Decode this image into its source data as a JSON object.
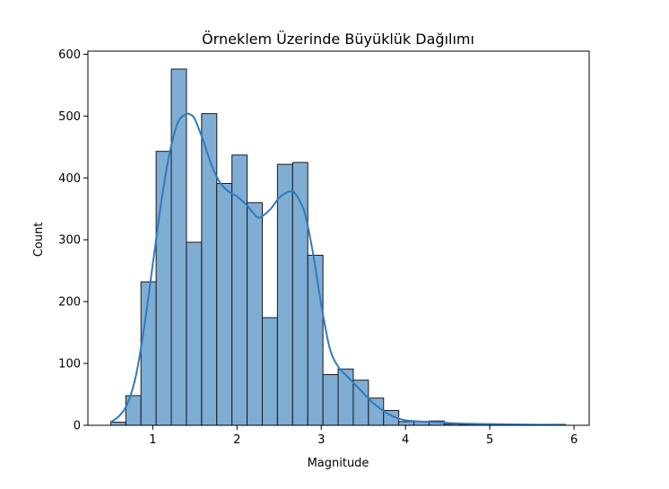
{
  "chart_data": {
    "type": "bar",
    "title": "Örneklem Üzerinde Büyüklük Dağılımı",
    "xlabel": "Magnitude",
    "ylabel": "Count",
    "xlim": [
      0.23,
      6.18
    ],
    "ylim": [
      0,
      605
    ],
    "xticks": [
      1,
      2,
      3,
      4,
      5,
      6
    ],
    "yticks": [
      0,
      100,
      200,
      300,
      400,
      500,
      600
    ],
    "grid": false,
    "bar_color": "#7fadd4",
    "bar_edge_color": "#1a1a1a",
    "kde_color": "#2f7bbd",
    "bins": [
      {
        "x0": 0.5,
        "x1": 0.68,
        "count": 5
      },
      {
        "x0": 0.68,
        "x1": 0.86,
        "count": 48
      },
      {
        "x0": 0.86,
        "x1": 1.04,
        "count": 232
      },
      {
        "x0": 1.04,
        "x1": 1.22,
        "count": 443
      },
      {
        "x0": 1.22,
        "x1": 1.4,
        "count": 576
      },
      {
        "x0": 1.4,
        "x1": 1.58,
        "count": 296
      },
      {
        "x0": 1.58,
        "x1": 1.76,
        "count": 504
      },
      {
        "x0": 1.76,
        "x1": 1.94,
        "count": 391
      },
      {
        "x0": 1.94,
        "x1": 2.12,
        "count": 437
      },
      {
        "x0": 2.12,
        "x1": 2.3,
        "count": 360
      },
      {
        "x0": 2.3,
        "x1": 2.48,
        "count": 174
      },
      {
        "x0": 2.48,
        "x1": 2.66,
        "count": 422
      },
      {
        "x0": 2.66,
        "x1": 2.84,
        "count": 425
      },
      {
        "x0": 2.84,
        "x1": 3.02,
        "count": 275
      },
      {
        "x0": 3.02,
        "x1": 3.2,
        "count": 82
      },
      {
        "x0": 3.2,
        "x1": 3.38,
        "count": 91
      },
      {
        "x0": 3.38,
        "x1": 3.56,
        "count": 73
      },
      {
        "x0": 3.56,
        "x1": 3.74,
        "count": 44
      },
      {
        "x0": 3.74,
        "x1": 3.92,
        "count": 24
      },
      {
        "x0": 3.92,
        "x1": 4.1,
        "count": 6
      },
      {
        "x0": 4.1,
        "x1": 4.28,
        "count": 6
      },
      {
        "x0": 4.28,
        "x1": 4.46,
        "count": 7
      },
      {
        "x0": 4.46,
        "x1": 4.64,
        "count": 2
      },
      {
        "x0": 4.64,
        "x1": 4.82,
        "count": 1
      },
      {
        "x0": 4.82,
        "x1": 5.0,
        "count": 1
      },
      {
        "x0": 5.0,
        "x1": 5.18,
        "count": 1
      },
      {
        "x0": 5.18,
        "x1": 5.36,
        "count": 1
      },
      {
        "x0": 5.36,
        "x1": 5.54,
        "count": 1
      },
      {
        "x0": 5.54,
        "x1": 5.72,
        "count": 1
      },
      {
        "x0": 5.72,
        "x1": 5.9,
        "count": 1
      }
    ],
    "kde": {
      "x": [
        0.5,
        0.6,
        0.7,
        0.8,
        0.9,
        1.0,
        1.1,
        1.2,
        1.3,
        1.4,
        1.45,
        1.5,
        1.6,
        1.7,
        1.8,
        1.9,
        2.0,
        2.1,
        2.2,
        2.25,
        2.3,
        2.4,
        2.5,
        2.6,
        2.65,
        2.7,
        2.8,
        2.9,
        3.0,
        3.1,
        3.2,
        3.3,
        3.4,
        3.5,
        3.6,
        3.7,
        3.8,
        3.9,
        4.0,
        4.2,
        4.4,
        4.6,
        5.0,
        5.5,
        5.9
      ],
      "y": [
        5,
        15,
        35,
        80,
        160,
        260,
        360,
        440,
        490,
        503,
        502,
        495,
        460,
        420,
        392,
        378,
        370,
        358,
        342,
        336,
        338,
        350,
        368,
        377,
        378,
        373,
        345,
        280,
        195,
        125,
        95,
        80,
        66,
        52,
        38,
        27,
        18,
        12,
        8,
        6,
        5,
        3,
        2,
        1,
        1
      ]
    }
  }
}
